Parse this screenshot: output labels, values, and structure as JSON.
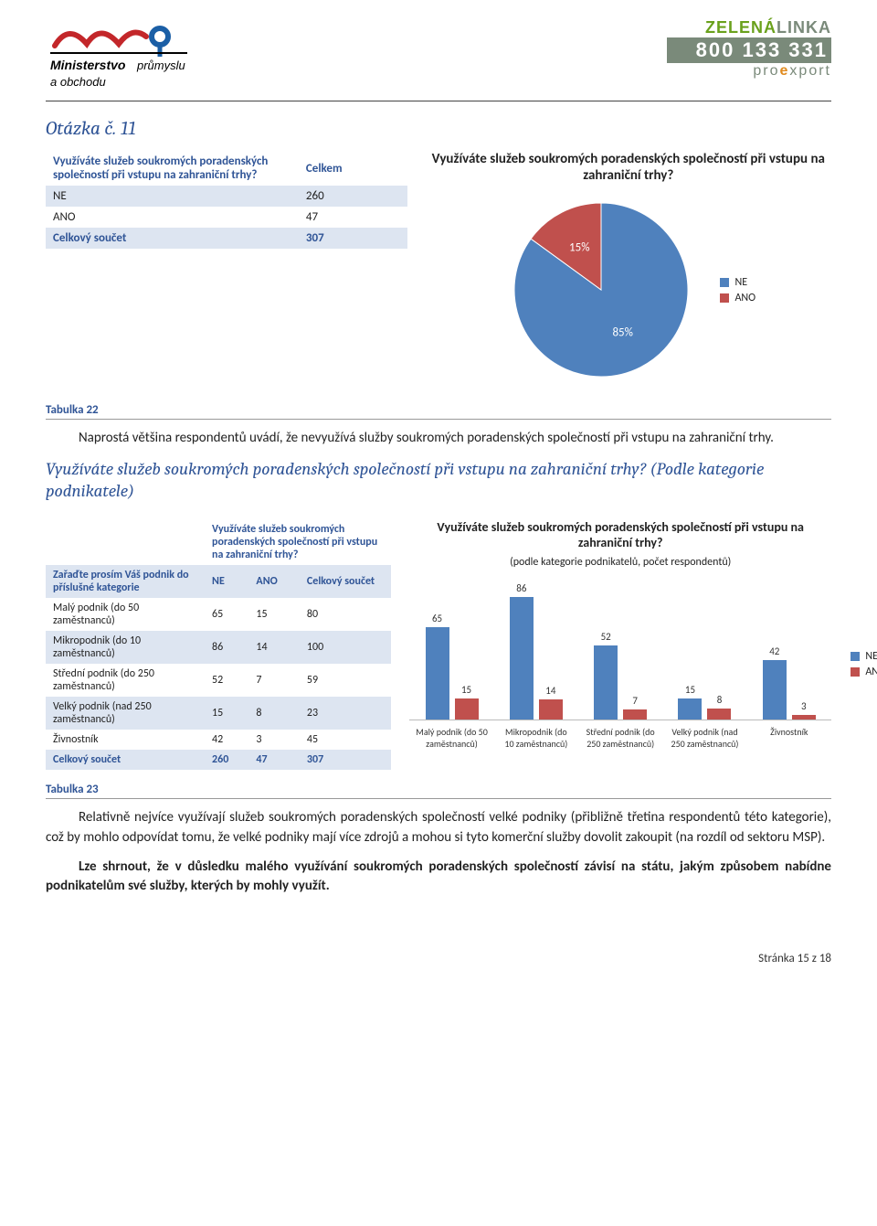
{
  "header": {
    "ministry_line1": "Ministerstvo průmyslu",
    "ministry_line2": "a obchodu",
    "logo_stroke": "#c3272a",
    "logo_fill_blue": "#1b5fa6",
    "zl_line1a": "ZELENÁ",
    "zl_line1b": "LINKA",
    "zl_color_green": "#6aa11c",
    "zl_color_gray": "#7a8a7a",
    "zl_line2": "800 133 331",
    "zl_line3a": "pro",
    "zl_line3b": "e",
    "zl_line3c": "xport",
    "zl_color_orange": "#e08a1e"
  },
  "section_title": "Otázka č. 11",
  "table1": {
    "header_q": "Využíváte služeb soukromých poradenských společností při vstupu na zahraniční trhy?",
    "header_total": "Celkem",
    "rows": [
      {
        "label": "NE",
        "val": "260"
      },
      {
        "label": "ANO",
        "val": "47"
      }
    ],
    "total_label": "Celkový součet",
    "total_val": "307"
  },
  "pie": {
    "title": "Využíváte služeb soukromých poradenských společností při vstupu na zahraniční trhy?",
    "slices": [
      {
        "label": "NE",
        "pct": 85,
        "color": "#4f81bd",
        "label_text": "85%"
      },
      {
        "label": "ANO",
        "pct": 15,
        "color": "#c0504d",
        "label_text": "15%"
      }
    ],
    "legend": [
      "NE",
      "ANO"
    ]
  },
  "tabulka22": "Tabulka 22",
  "para1": "Naprostá většina respondentů uvádí, že nevyužívá služby soukromých poradenských společností při vstupu na zahraniční trhy.",
  "subheading": "Využíváte služeb soukromých poradenských společností při vstupu na zahraniční trhy? (Podle kategorie podnikatele)",
  "table2": {
    "superheader": "Využíváte služeb soukromých poradenských společností při vstupu na zahraniční trhy?",
    "col0": "Zařaďte prosím Váš podnik do příslušné kategorie",
    "col1": "NE",
    "col2": "ANO",
    "col3": "Celkový součet",
    "rows": [
      {
        "label": "Malý podnik (do 50 zaměstnanců)",
        "ne": "65",
        "ano": "15",
        "tot": "80"
      },
      {
        "label": "Mikropodnik (do 10 zaměstnanců)",
        "ne": "86",
        "ano": "14",
        "tot": "100"
      },
      {
        "label": "Střední podnik (do 250 zaměstnanců)",
        "ne": "52",
        "ano": "7",
        "tot": "59"
      },
      {
        "label": "Velký podnik (nad 250 zaměstnanců)",
        "ne": "15",
        "ano": "8",
        "tot": "23"
      },
      {
        "label": "Živnostník",
        "ne": "42",
        "ano": "3",
        "tot": "45"
      }
    ],
    "total_label": "Celkový součet",
    "total_ne": "260",
    "total_ano": "47",
    "total_tot": "307"
  },
  "bar": {
    "title": "Využíváte služeb soukromých poradenských společností při vstupu na zahraniční trhy?",
    "subtitle": "(podle kategorie podnikatelů, počet respondentů)",
    "color_ne": "#4f81bd",
    "color_ano": "#c0504d",
    "ymax": 90,
    "categories": [
      {
        "label": "Malý podnik (do 50 zaměstnanců)",
        "ne": 65,
        "ano": 15
      },
      {
        "label": "Mikropodnik (do 10 zaměstnanců)",
        "ne": 86,
        "ano": 14
      },
      {
        "label": "Střední podnik (do 250 zaměstnanců)",
        "ne": 52,
        "ano": 7
      },
      {
        "label": "Velký podnik (nad 250 zaměstnanců)",
        "ne": 15,
        "ano": 8
      },
      {
        "label": "Živnostník",
        "ne": 42,
        "ano": 3
      }
    ],
    "legend": [
      "NE",
      "ANO"
    ]
  },
  "tabulka23": "Tabulka 23",
  "para2": "Relativně nejvíce využívají služeb soukromých poradenských společností velké podniky (přibližně třetina respondentů této kategorie), což by mohlo odpovídat tomu, že velké podniky mají více zdrojů a mohou si tyto komerční služby dovolit zakoupit (na rozdíl od sektoru MSP).",
  "para3": "Lze shrnout, že v důsledku malého využívání soukromých poradenských společností závisí na státu, jakým způsobem nabídne podnikatelům své služby, kterých by mohly využít.",
  "footer": "Stránka 15 z 18"
}
